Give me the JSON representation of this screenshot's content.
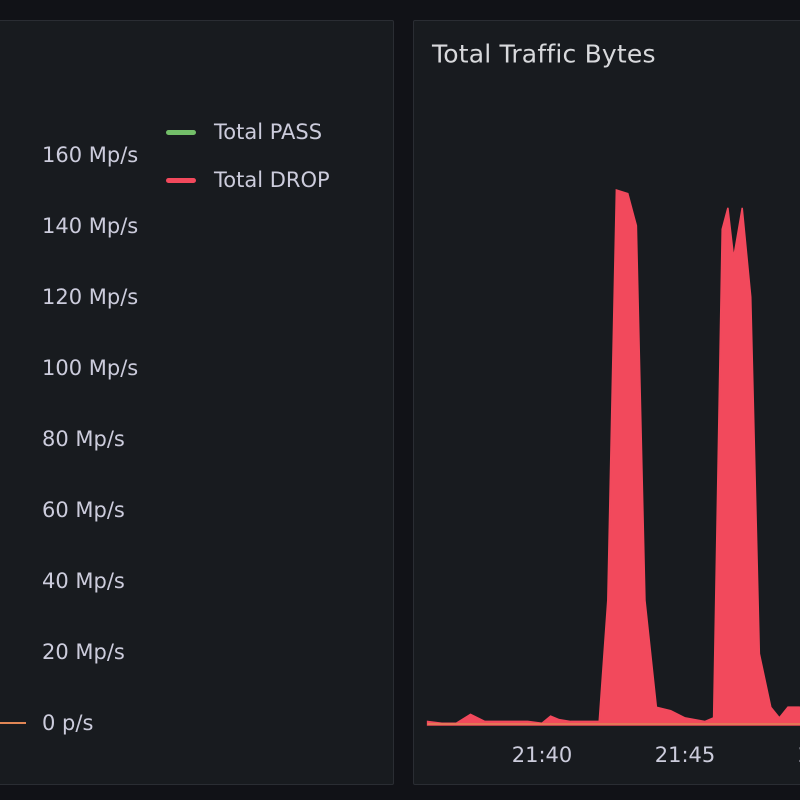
{
  "left_panel": {
    "y_ticks": [
      "160 Mp/s",
      "140 Mp/s",
      "120 Mp/s",
      "100 Mp/s",
      "80 Mp/s",
      "60 Mp/s",
      "40 Mp/s",
      "20 Mp/s",
      "0 p/s"
    ],
    "legend": [
      {
        "label": "Total PASS",
        "color": "#73bf69"
      },
      {
        "label": "Total DROP",
        "color": "#f2495c"
      }
    ]
  },
  "right_panel": {
    "title": "Total Traffic Bytes"
  },
  "chart_data": {
    "type": "area",
    "title": "Total Traffic Bytes",
    "x_ticks": [
      "21:40",
      "21:45",
      "2"
    ],
    "series": [
      {
        "name": "Total DROP",
        "color": "#f2495c",
        "x": [
          "21:36",
          "21:36.5",
          "21:37",
          "21:37.5",
          "21:38",
          "21:38.5",
          "21:39",
          "21:39.5",
          "21:40",
          "21:40.3",
          "21:40.6",
          "21:41",
          "21:41.5",
          "21:41.7",
          "21:42",
          "21:42.3",
          "21:42.6",
          "21:43",
          "21:43.3",
          "21:43.6",
          "21:44",
          "21:44.5",
          "21:45",
          "21:45.7",
          "21:46",
          "21:46.3",
          "21:46.5",
          "21:46.7",
          "21:47",
          "21:47.3",
          "21:47.6",
          "21:48",
          "21:48.3",
          "21:48.6",
          "21:49",
          "21:49.5"
        ],
        "values": [
          1,
          0.5,
          0.5,
          3,
          1,
          1,
          1,
          1,
          0.5,
          2.5,
          1.5,
          1,
          1,
          1,
          1,
          35,
          150,
          149,
          140,
          35,
          5,
          4,
          2,
          1,
          2,
          139,
          145,
          131,
          145,
          120,
          20,
          5,
          2,
          5,
          5,
          1
        ],
        "values_unit": "Mp/s"
      },
      {
        "name": "Total PASS",
        "color": "#73bf69",
        "x": [
          "21:36",
          "21:49.5"
        ],
        "values": [
          0,
          0
        ],
        "values_unit": "Mp/s"
      }
    ]
  }
}
